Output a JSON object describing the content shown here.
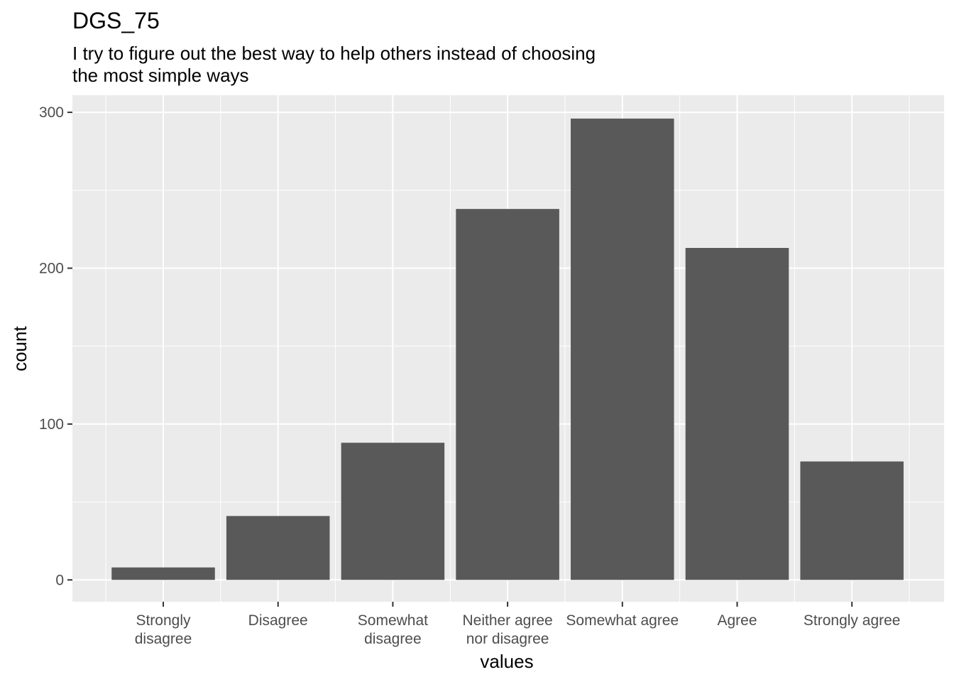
{
  "chart_data": {
    "type": "bar",
    "title": "DGS_75",
    "subtitle": [
      "I try to figure out the best way to help others instead of choosing",
      "the most simple ways"
    ],
    "xlabel": "values",
    "ylabel": "count",
    "categories": [
      [
        "Strongly",
        "disagree"
      ],
      [
        "Disagree"
      ],
      [
        "Somewhat",
        "disagree"
      ],
      [
        "Neither agree",
        "nor disagree"
      ],
      [
        "Somewhat agree"
      ],
      [
        "Agree"
      ],
      [
        "Strongly agree"
      ]
    ],
    "values": [
      8,
      41,
      88,
      238,
      296,
      213,
      76
    ],
    "yticks": [
      0,
      100,
      200,
      300
    ],
    "ylim": [
      -14,
      311
    ],
    "grid": true,
    "colors": {
      "panel": "#ebebeb",
      "grid": "#ffffff",
      "bar": "#595959",
      "tick": "#333333"
    }
  }
}
